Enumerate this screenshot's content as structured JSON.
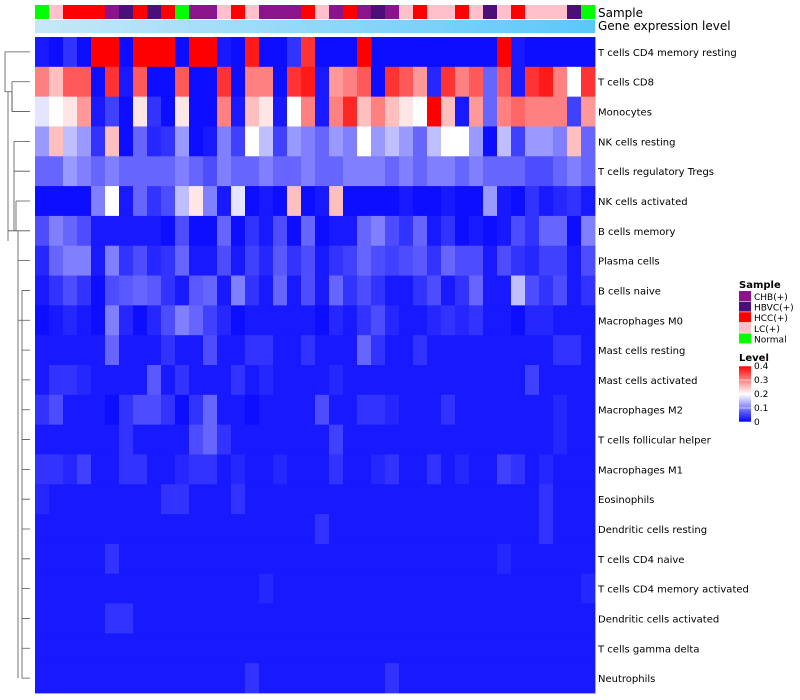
{
  "chart_data": {
    "type": "heatmap",
    "title": "",
    "annotation_tracks": [
      {
        "name": "Sample"
      },
      {
        "name": "Gene expression level"
      }
    ],
    "samples": [
      "Normal",
      "LC(+)",
      "HCC(+)",
      "HCC(+)",
      "HCC(+)",
      "CHB(+)",
      "HBVC(+)",
      "HCC(+)",
      "HBVC(+)",
      "HCC(+)",
      "Normal",
      "CHB(+)",
      "CHB(+)",
      "LC(+)",
      "HCC(+)",
      "LC(+)",
      "CHB(+)",
      "CHB(+)",
      "CHB(+)",
      "HCC(+)",
      "LC(+)",
      "CHB(+)",
      "HCC(+)",
      "CHB(+)",
      "HBVC(+)",
      "CHB(+)",
      "LC(+)",
      "HCC(+)",
      "LC(+)",
      "LC(+)",
      "HCC(+)",
      "LC(+)",
      "HBVC(+)",
      "LC(+)",
      "HCC(+)",
      "LC(+)",
      "LC(+)",
      "LC(+)",
      "HBVC(+)",
      "Normal"
    ],
    "sample_colors": {
      "CHB(+)": "#8b138b",
      "HBVC(+)": "#4b0f7a",
      "HCC(+)": "#ff0000",
      "LC(+)": "#ffc0cb",
      "Normal": "#00ff00"
    },
    "gene_expression_gradient": [
      "#c6e8f7",
      "#5ac8fa"
    ],
    "rows": [
      "T cells CD4 memory resting",
      "T cells CD8",
      "Monocytes",
      "NK cells resting",
      "T cells regulatory  Tregs",
      "NK cells activated",
      "B cells memory",
      "Plasma cells",
      "B cells naive",
      "Macrophages M0",
      "Mast cells resting",
      "Mast cells activated",
      "Macrophages M2",
      "T cells follicular helper",
      "Macrophages M1",
      "Eosinophils",
      "Dendritic cells resting",
      "T cells CD4 naive",
      "T cells CD4 memory activated",
      "Dendritic cells activated",
      "T cells gamma delta",
      "Neutrophils"
    ],
    "values": [
      [
        0.02,
        0.01,
        0.04,
        0.01,
        0.4,
        0.4,
        0.01,
        0.4,
        0.4,
        0.4,
        0.01,
        0.4,
        0.4,
        0.02,
        0.01,
        0.38,
        0.01,
        0.01,
        0.04,
        0.36,
        0.01,
        0.01,
        0.01,
        0.4,
        0.01,
        0.01,
        0.01,
        0.01,
        0.01,
        0.01,
        0.01,
        0.01,
        0.01,
        0.4,
        0.02,
        0.01,
        0.01,
        0.01,
        0.01,
        0.01
      ],
      [
        0.3,
        0.25,
        0.33,
        0.33,
        0.01,
        0.36,
        0.02,
        0.33,
        0.01,
        0.01,
        0.33,
        0.01,
        0.01,
        0.36,
        0.01,
        0.3,
        0.3,
        0.01,
        0.36,
        0.38,
        0.02,
        0.28,
        0.3,
        0.33,
        0.01,
        0.36,
        0.33,
        0.28,
        0.03,
        0.36,
        0.3,
        0.33,
        0.08,
        0.33,
        0.02,
        0.36,
        0.38,
        0.3,
        0.2,
        0.36
      ],
      [
        0.18,
        0.2,
        0.22,
        0.28,
        0.02,
        0.05,
        0.01,
        0.22,
        0.04,
        0.01,
        0.22,
        0.01,
        0.01,
        0.3,
        0.02,
        0.25,
        0.22,
        0.02,
        0.2,
        0.3,
        0.02,
        0.3,
        0.37,
        0.25,
        0.3,
        0.25,
        0.22,
        0.2,
        0.4,
        0.25,
        0.02,
        0.28,
        0.08,
        0.3,
        0.32,
        0.3,
        0.3,
        0.3,
        0.05,
        0.28
      ],
      [
        0.12,
        0.25,
        0.15,
        0.12,
        0.04,
        0.25,
        0.01,
        0.08,
        0.03,
        0.04,
        0.12,
        0.01,
        0.02,
        0.1,
        0.05,
        0.2,
        0.15,
        0.05,
        0.12,
        0.1,
        0.08,
        0.12,
        0.1,
        0.2,
        0.12,
        0.15,
        0.12,
        0.08,
        0.15,
        0.2,
        0.2,
        0.12,
        0.01,
        0.15,
        0.05,
        0.12,
        0.12,
        0.1,
        0.25,
        0.08
      ],
      [
        0.08,
        0.08,
        0.12,
        0.1,
        0.08,
        0.1,
        0.08,
        0.08,
        0.08,
        0.08,
        0.1,
        0.08,
        0.06,
        0.1,
        0.08,
        0.08,
        0.1,
        0.08,
        0.08,
        0.1,
        0.08,
        0.08,
        0.1,
        0.1,
        0.1,
        0.08,
        0.1,
        0.08,
        0.1,
        0.1,
        0.08,
        0.1,
        0.08,
        0.08,
        0.08,
        0.06,
        0.06,
        0.08,
        0.1,
        0.08
      ],
      [
        0.01,
        0.01,
        0.01,
        0.01,
        0.1,
        0.2,
        0.02,
        0.08,
        0.04,
        0.06,
        0.15,
        0.22,
        0.1,
        0.02,
        0.18,
        0.01,
        0.02,
        0.01,
        0.25,
        0.01,
        0.02,
        0.25,
        0.01,
        0.01,
        0.01,
        0.01,
        0.02,
        0.01,
        0.01,
        0.02,
        0.01,
        0.01,
        0.12,
        0.02,
        0.01,
        0.04,
        0.02,
        0.03,
        0.04,
        0.02
      ],
      [
        0.06,
        0.1,
        0.08,
        0.06,
        0.02,
        0.02,
        0.02,
        0.02,
        0.02,
        0.01,
        0.06,
        0.01,
        0.01,
        0.08,
        0.01,
        0.04,
        0.02,
        0.06,
        0.01,
        0.08,
        0.01,
        0.02,
        0.02,
        0.08,
        0.1,
        0.06,
        0.04,
        0.08,
        0.02,
        0.04,
        0.01,
        0.02,
        0.01,
        0.02,
        0.06,
        0.04,
        0.08,
        0.08,
        0.01,
        0.1
      ],
      [
        0.03,
        0.08,
        0.1,
        0.1,
        0.02,
        0.1,
        0.04,
        0.06,
        0.03,
        0.04,
        0.08,
        0.02,
        0.02,
        0.06,
        0.02,
        0.05,
        0.03,
        0.07,
        0.04,
        0.06,
        0.02,
        0.04,
        0.05,
        0.08,
        0.06,
        0.05,
        0.06,
        0.07,
        0.04,
        0.08,
        0.06,
        0.06,
        0.02,
        0.06,
        0.04,
        0.03,
        0.05,
        0.05,
        0.02,
        0.06
      ],
      [
        0.02,
        0.04,
        0.06,
        0.04,
        0.01,
        0.06,
        0.07,
        0.08,
        0.07,
        0.04,
        0.02,
        0.07,
        0.08,
        0.02,
        0.1,
        0.04,
        0.02,
        0.08,
        0.02,
        0.06,
        0.02,
        0.08,
        0.04,
        0.06,
        0.04,
        0.02,
        0.02,
        0.04,
        0.06,
        0.02,
        0.04,
        0.08,
        0.02,
        0.02,
        0.15,
        0.06,
        0.04,
        0.06,
        0.02,
        0.04
      ],
      [
        0.01,
        0.02,
        0.03,
        0.02,
        0.01,
        0.1,
        0.03,
        0.01,
        0.03,
        0.06,
        0.1,
        0.08,
        0.05,
        0.03,
        0.01,
        0.02,
        0.02,
        0.02,
        0.02,
        0.02,
        0.01,
        0.03,
        0.02,
        0.04,
        0.06,
        0.03,
        0.02,
        0.02,
        0.03,
        0.04,
        0.03,
        0.04,
        0.02,
        0.02,
        0.01,
        0.03,
        0.03,
        0.02,
        0.02,
        0.02
      ],
      [
        0.02,
        0.02,
        0.02,
        0.02,
        0.02,
        0.08,
        0.02,
        0.02,
        0.02,
        0.04,
        0.02,
        0.02,
        0.06,
        0.02,
        0.02,
        0.04,
        0.04,
        0.02,
        0.02,
        0.04,
        0.02,
        0.02,
        0.02,
        0.08,
        0.04,
        0.02,
        0.02,
        0.04,
        0.02,
        0.02,
        0.02,
        0.02,
        0.02,
        0.02,
        0.02,
        0.02,
        0.02,
        0.04,
        0.04,
        0.02
      ],
      [
        0.02,
        0.04,
        0.04,
        0.03,
        0.02,
        0.02,
        0.02,
        0.02,
        0.07,
        0.02,
        0.04,
        0.02,
        0.02,
        0.02,
        0.04,
        0.02,
        0.03,
        0.02,
        0.02,
        0.02,
        0.02,
        0.03,
        0.02,
        0.02,
        0.02,
        0.02,
        0.02,
        0.02,
        0.02,
        0.02,
        0.02,
        0.02,
        0.02,
        0.02,
        0.02,
        0.05,
        0.02,
        0.02,
        0.02,
        0.02
      ],
      [
        0.04,
        0.06,
        0.02,
        0.02,
        0.02,
        0.01,
        0.04,
        0.06,
        0.06,
        0.04,
        0.01,
        0.04,
        0.08,
        0.02,
        0.02,
        0.01,
        0.02,
        0.02,
        0.02,
        0.02,
        0.06,
        0.02,
        0.02,
        0.04,
        0.04,
        0.03,
        0.02,
        0.02,
        0.02,
        0.04,
        0.02,
        0.02,
        0.02,
        0.02,
        0.02,
        0.02,
        0.02,
        0.03,
        0.02,
        0.02
      ],
      [
        0.02,
        0.02,
        0.02,
        0.02,
        0.02,
        0.02,
        0.04,
        0.02,
        0.02,
        0.02,
        0.02,
        0.06,
        0.08,
        0.04,
        0.02,
        0.02,
        0.02,
        0.02,
        0.02,
        0.02,
        0.02,
        0.05,
        0.02,
        0.02,
        0.02,
        0.02,
        0.02,
        0.02,
        0.02,
        0.02,
        0.02,
        0.02,
        0.02,
        0.02,
        0.02,
        0.02,
        0.02,
        0.03,
        0.02,
        0.02
      ],
      [
        0.04,
        0.04,
        0.03,
        0.05,
        0.02,
        0.02,
        0.04,
        0.04,
        0.02,
        0.02,
        0.03,
        0.04,
        0.04,
        0.02,
        0.03,
        0.02,
        0.02,
        0.03,
        0.02,
        0.02,
        0.02,
        0.04,
        0.02,
        0.02,
        0.03,
        0.04,
        0.02,
        0.02,
        0.04,
        0.02,
        0.03,
        0.02,
        0.02,
        0.05,
        0.04,
        0.02,
        0.03,
        0.02,
        0.02,
        0.02
      ],
      [
        0.03,
        0.02,
        0.02,
        0.02,
        0.02,
        0.02,
        0.02,
        0.02,
        0.02,
        0.04,
        0.04,
        0.02,
        0.02,
        0.02,
        0.04,
        0.02,
        0.02,
        0.02,
        0.02,
        0.02,
        0.02,
        0.02,
        0.02,
        0.02,
        0.02,
        0.02,
        0.02,
        0.02,
        0.02,
        0.02,
        0.02,
        0.02,
        0.02,
        0.02,
        0.02,
        0.02,
        0.04,
        0.02,
        0.02,
        0.02
      ],
      [
        0.02,
        0.02,
        0.02,
        0.02,
        0.02,
        0.02,
        0.02,
        0.02,
        0.02,
        0.02,
        0.02,
        0.02,
        0.02,
        0.02,
        0.02,
        0.02,
        0.02,
        0.02,
        0.02,
        0.02,
        0.04,
        0.02,
        0.02,
        0.02,
        0.02,
        0.02,
        0.02,
        0.02,
        0.02,
        0.02,
        0.02,
        0.02,
        0.02,
        0.02,
        0.02,
        0.02,
        0.04,
        0.02,
        0.02,
        0.02
      ],
      [
        0.02,
        0.02,
        0.02,
        0.02,
        0.02,
        0.04,
        0.02,
        0.02,
        0.02,
        0.02,
        0.02,
        0.02,
        0.02,
        0.02,
        0.02,
        0.02,
        0.02,
        0.02,
        0.02,
        0.02,
        0.02,
        0.02,
        0.02,
        0.02,
        0.02,
        0.02,
        0.02,
        0.02,
        0.02,
        0.02,
        0.02,
        0.02,
        0.02,
        0.03,
        0.02,
        0.02,
        0.02,
        0.02,
        0.02,
        0.02
      ],
      [
        0.02,
        0.02,
        0.02,
        0.02,
        0.02,
        0.02,
        0.02,
        0.02,
        0.02,
        0.02,
        0.02,
        0.02,
        0.02,
        0.02,
        0.02,
        0.02,
        0.03,
        0.02,
        0.02,
        0.02,
        0.02,
        0.02,
        0.02,
        0.02,
        0.02,
        0.02,
        0.02,
        0.02,
        0.02,
        0.02,
        0.02,
        0.02,
        0.02,
        0.02,
        0.02,
        0.02,
        0.02,
        0.02,
        0.02,
        0.03
      ],
      [
        0.02,
        0.02,
        0.02,
        0.02,
        0.02,
        0.04,
        0.04,
        0.02,
        0.02,
        0.02,
        0.02,
        0.02,
        0.02,
        0.02,
        0.02,
        0.02,
        0.02,
        0.02,
        0.02,
        0.02,
        0.02,
        0.02,
        0.02,
        0.02,
        0.02,
        0.02,
        0.02,
        0.02,
        0.02,
        0.02,
        0.02,
        0.02,
        0.02,
        0.02,
        0.02,
        0.02,
        0.02,
        0.02,
        0.02,
        0.02
      ],
      [
        0.02,
        0.02,
        0.02,
        0.02,
        0.02,
        0.02,
        0.02,
        0.02,
        0.02,
        0.02,
        0.02,
        0.02,
        0.02,
        0.02,
        0.02,
        0.02,
        0.02,
        0.02,
        0.02,
        0.02,
        0.02,
        0.02,
        0.02,
        0.02,
        0.02,
        0.02,
        0.02,
        0.02,
        0.02,
        0.02,
        0.02,
        0.02,
        0.02,
        0.02,
        0.02,
        0.02,
        0.02,
        0.02,
        0.02,
        0.02
      ],
      [
        0.02,
        0.02,
        0.02,
        0.02,
        0.02,
        0.02,
        0.02,
        0.02,
        0.02,
        0.02,
        0.02,
        0.02,
        0.02,
        0.02,
        0.02,
        0.04,
        0.02,
        0.02,
        0.02,
        0.02,
        0.02,
        0.02,
        0.02,
        0.02,
        0.02,
        0.04,
        0.02,
        0.02,
        0.02,
        0.02,
        0.02,
        0.02,
        0.02,
        0.02,
        0.02,
        0.02,
        0.02,
        0.02,
        0.02,
        0.02
      ]
    ],
    "color_scale": {
      "min": 0,
      "max": 0.4,
      "stops": [
        {
          "value": 0,
          "color": "#0000ff"
        },
        {
          "value": 0.2,
          "color": "#ffffff"
        },
        {
          "value": 0.4,
          "color": "#ff0000"
        }
      ]
    },
    "legends": {
      "sample": {
        "title": "Sample",
        "entries": [
          {
            "label": "CHB(+)",
            "color": "#8b138b"
          },
          {
            "label": "HBVC(+)",
            "color": "#4b0f7a"
          },
          {
            "label": "HCC(+)",
            "color": "#ff0000"
          },
          {
            "label": "LC(+)",
            "color": "#ffc0cb"
          },
          {
            "label": "Normal",
            "color": "#00ff00"
          }
        ]
      },
      "level": {
        "title": "Level",
        "ticks": [
          "0.4",
          "0.3",
          "0.2",
          "0.1",
          "0"
        ]
      }
    },
    "dendrogram": "row clustering tree (left)"
  }
}
